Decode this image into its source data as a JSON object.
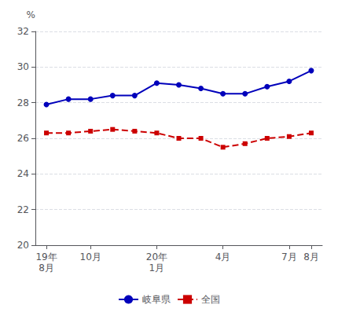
{
  "chart_data": {
    "type": "line",
    "ylabel": "%",
    "categories": [
      "19年\n8月",
      null,
      "10月",
      null,
      null,
      "20年\n1月",
      null,
      null,
      "4月",
      null,
      null,
      "7月",
      "8月"
    ],
    "series": [
      {
        "name": "岐阜県",
        "color": "#0000bb",
        "marker": "circle",
        "line_style": "solid",
        "values": [
          27.9,
          28.2,
          28.2,
          28.4,
          28.4,
          29.1,
          29.0,
          28.8,
          28.5,
          28.5,
          28.9,
          29.2,
          29.8
        ]
      },
      {
        "name": "全国",
        "color": "#cc0000",
        "marker": "square",
        "line_style": "dashed",
        "values": [
          26.3,
          26.3,
          26.4,
          26.5,
          26.4,
          26.3,
          26.0,
          26.0,
          25.5,
          25.7,
          26.0,
          26.1,
          26.3
        ]
      }
    ],
    "ylim": [
      20,
      32
    ],
    "yticks": [
      20,
      22,
      24,
      26,
      28,
      30,
      32
    ],
    "grid": true,
    "legend": "bottom"
  }
}
